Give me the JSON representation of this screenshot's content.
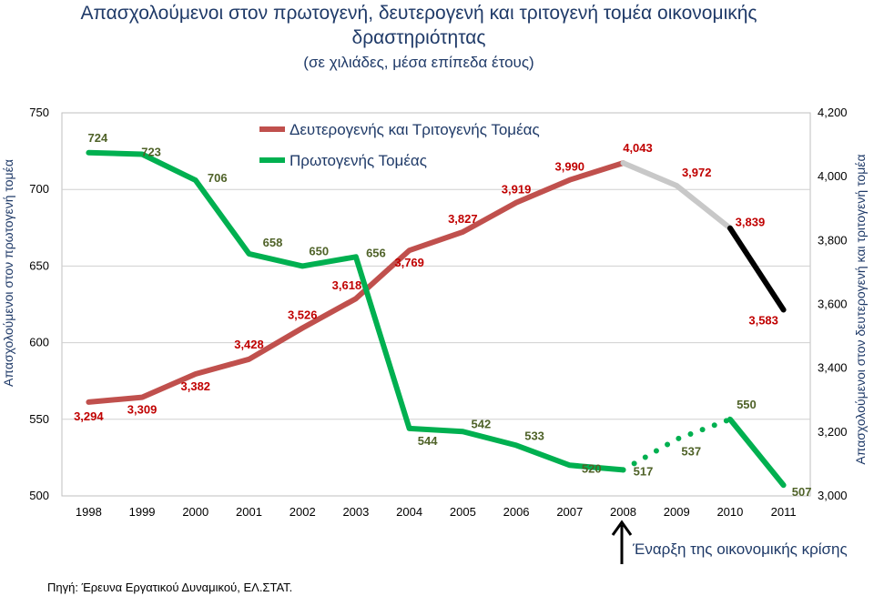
{
  "chart_data": {
    "type": "line",
    "title": "Απασχολούμενοι στον πρωτογενή, δευτερογενή και τριτογενή τομέα οικονομικής",
    "title_line2": "δραστηριότητας",
    "subtitle": "(σε χιλιάδες, μέσα επίπεδα έτους)",
    "categories": [
      "1998",
      "1999",
      "2000",
      "2001",
      "2002",
      "2003",
      "2004",
      "2005",
      "2006",
      "2007",
      "2008",
      "2009",
      "2010",
      "2011"
    ],
    "y_left": {
      "label": "Απασχολούμενοι στον πρωτογενή τομέα",
      "range": [
        500,
        750
      ],
      "ticks": [
        500,
        550,
        600,
        650,
        700,
        750
      ],
      "tick_labels": [
        "500",
        "550",
        "600",
        "650",
        "700",
        "750"
      ]
    },
    "y_right": {
      "label": "Απασχολούμενοι στον δευτερογενή και τριτογενή τομέα",
      "range": [
        3000,
        4200
      ],
      "ticks": [
        3000,
        3200,
        3400,
        3600,
        3800,
        4000,
        4200
      ],
      "tick_labels": [
        "3,000",
        "3,200",
        "3,400",
        "3,600",
        "3,800",
        "4,000",
        "4,200"
      ]
    },
    "grid": true,
    "legend_placement": "top-left",
    "series": [
      {
        "name": "Δευτερογενής και Τριτογενής Τομέας",
        "axis": "right",
        "color": "#c0504d",
        "forecast_colors": [
          "#c8c8c8",
          "#000000"
        ],
        "values": [
          3294,
          3309,
          3382,
          3428,
          3526,
          3618,
          3769,
          3827,
          3919,
          3990,
          4043,
          3972,
          3839,
          3583
        ],
        "labels": [
          "3,294",
          "3,309",
          "3,382",
          "3,428",
          "3,526",
          "3,618",
          "3,769",
          "3,827",
          "3,919",
          "3,990",
          "4,043",
          "3,972",
          "3,839",
          "3,583"
        ]
      },
      {
        "name": "Πρωτογενής Τομέας",
        "axis": "left",
        "color": "#00b050",
        "values": [
          724,
          723,
          706,
          658,
          650,
          656,
          544,
          542,
          533,
          520,
          517,
          537,
          550,
          507
        ],
        "labels": [
          "724",
          "723",
          "706",
          "658",
          "650",
          "656",
          "544",
          "542",
          "533",
          "520",
          "517",
          "537",
          "550",
          "507"
        ]
      }
    ],
    "annotation": "Έναρξη της οικονομικής κρίσης",
    "source": "Πηγή: Έρευνα Εργατικού Δυναμικού, ΕΛ.ΣΤΑΤ."
  }
}
